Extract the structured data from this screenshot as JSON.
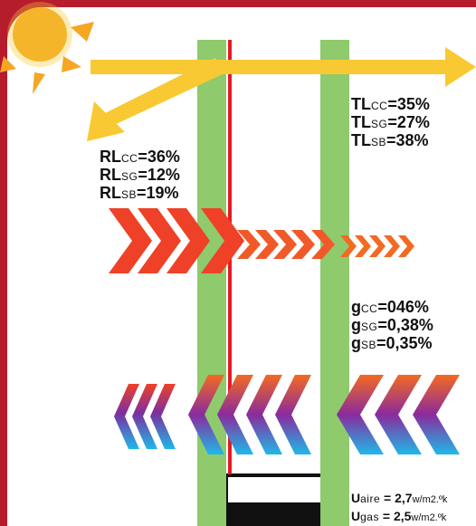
{
  "colors": {
    "background": "#b71c2c",
    "panel": "#ffffff",
    "glass": "#8fca6d",
    "sun": "#f5a623",
    "light_arrow": "#f9c933",
    "heat_arrow": "#ef4127",
    "red_line": "#e21b23"
  },
  "icons": [
    "sun-icon",
    "light-arrow-icon",
    "heat-chevrons-icon",
    "cold-chevrons-icon"
  ],
  "reflection": {
    "rows": [
      {
        "main": "RL",
        "sub": "CC",
        "value": "=36%"
      },
      {
        "main": "RL",
        "sub": "SG",
        "value": "=12%"
      },
      {
        "main": "RL",
        "sub": "SB",
        "value": "=19%"
      }
    ]
  },
  "transmission": {
    "rows": [
      {
        "main": "TL",
        "sub": "CC",
        "value": "=35%"
      },
      {
        "main": "TL",
        "sub": "SG",
        "value": "=27%"
      },
      {
        "main": "TL",
        "sub": "SB",
        "value": "=38%"
      }
    ]
  },
  "solar_factor": {
    "rows": [
      {
        "main": "g",
        "sub": "CC",
        "value": "=046%"
      },
      {
        "main": "g",
        "sub": "SG",
        "value": "=0,38%"
      },
      {
        "main": "g",
        "sub": "SB",
        "value": "=0,35%"
      }
    ]
  },
  "u_values": {
    "rows": [
      {
        "main": "U",
        "sub": "aire",
        "value": " = 2,7",
        "unit": "w/m2.ºk"
      },
      {
        "main": "U",
        "sub": "gas",
        "value": " = 2,5",
        "unit": "w/m2.ºk"
      }
    ]
  }
}
